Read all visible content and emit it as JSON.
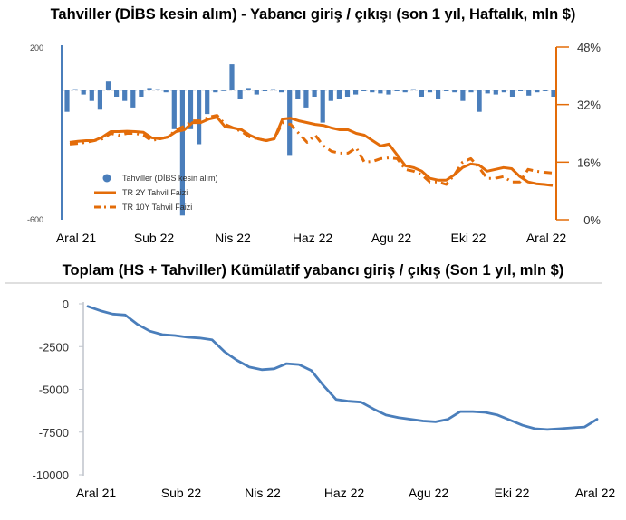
{
  "charts": {
    "top": {
      "title": "Tahviller (DİBS kesin alım) - Yabancı giriş / çıkışı (son 1 yıl, Haftalık, mln $)"
    },
    "bottom": {
      "title": "Toplam (HS + Tahviller) Kümülatif yabancı giriş / çıkış (Son 1 yıl, mln $)"
    }
  },
  "colors": {
    "blue": "#4a7ebb",
    "orange": "#e36c09",
    "axis_gray": "#7f7f7f",
    "grid": "#d9d9d9"
  },
  "chart_data": [
    {
      "type": "bar",
      "title": "Tahviller (DİBS kesin alım) - Yabancı giriş / çıkışı (son 1 yıl, Haftalık, mln $)",
      "x_ticks": [
        "Aral 21",
        "Sub 22",
        "Nis 22",
        "Haz 22",
        "Agu 22",
        "Eki 22",
        "Aral 22"
      ],
      "left_axis": {
        "ylim": [
          -600,
          200
        ],
        "ticks": [
          "200",
          "-600"
        ]
      },
      "right_axis": {
        "ylim": [
          0,
          48
        ],
        "ticks": [
          "48%",
          "32%",
          "16%",
          "0%"
        ]
      },
      "legend": [
        "Tahviller (DİBS kesin alım)",
        "TR 2Y Tahvil Faizi",
        "TR 10Y Tahvil Faizi"
      ],
      "series": [
        {
          "name": "Tahviller (DİBS kesin alım)",
          "type": "bar",
          "axis": "left",
          "values": [
            -100,
            5,
            -20,
            -50,
            -90,
            40,
            -30,
            -50,
            -80,
            -30,
            10,
            5,
            -10,
            -180,
            -580,
            -180,
            -250,
            -110,
            -10,
            0,
            120,
            -40,
            10,
            -20,
            -5,
            5,
            -10,
            -300,
            -40,
            -80,
            -30,
            -150,
            -50,
            -40,
            -30,
            -20,
            -5,
            -10,
            -15,
            -20,
            -5,
            -10,
            5,
            -30,
            -10,
            -40,
            -5,
            -10,
            -50,
            -10,
            -100,
            -15,
            -20,
            -10,
            -30,
            -5,
            -25,
            -10,
            -5,
            -30
          ]
        },
        {
          "name": "TR 2Y Tahvil Faizi",
          "type": "line",
          "axis": "right",
          "values": [
            21.5,
            21.8,
            22,
            22,
            23,
            24.5,
            24.5,
            24.6,
            24.5,
            24.3,
            22.8,
            22.5,
            23,
            24.5,
            25,
            27,
            27,
            28,
            28.5,
            25.8,
            25.5,
            25,
            23.5,
            22.5,
            22,
            22.5,
            28,
            28.2,
            27.5,
            27,
            26.5,
            26.2,
            25.5,
            25,
            25,
            24,
            23.5,
            22,
            20.5,
            21,
            18,
            15,
            14.5,
            13.5,
            11.5,
            11,
            11,
            12.5,
            14.5,
            15.5,
            15.2,
            13.5,
            14,
            14.5,
            14.2,
            12,
            10.5,
            10,
            9.8,
            9.5
          ]
        },
        {
          "name": "TR 10Y Tahvil Faizi",
          "type": "line",
          "axis": "right",
          "values": [
            21,
            21.2,
            21.5,
            22,
            22.5,
            24,
            23.5,
            24,
            24,
            23.5,
            22,
            22.5,
            23,
            25,
            26,
            27.5,
            27.5,
            28.5,
            29,
            26.5,
            25.5,
            24.5,
            23,
            22.5,
            22,
            22.5,
            27,
            26.5,
            24,
            21.5,
            23.5,
            20.5,
            19,
            18.5,
            18.5,
            20,
            16,
            16.2,
            17,
            17.2,
            17,
            14,
            13.5,
            12.5,
            10.5,
            10.5,
            9.8,
            12.5,
            16,
            17,
            14.5,
            11.5,
            11.5,
            12,
            10.5,
            10.5,
            14,
            13.5,
            13.2,
            13
          ]
        }
      ]
    },
    {
      "type": "line",
      "title": "Toplam (HS + Tahviller) Kümülatif yabancı giriş / çıkış (Son 1 yıl, mln $)",
      "x_ticks": [
        "Aral 21",
        "Sub 22",
        "Nis 22",
        "Haz 22",
        "Agu 22",
        "Eki 22",
        "Aral 22"
      ],
      "y_axis": {
        "ylim": [
          -10000,
          0
        ],
        "ticks": [
          "0",
          "-2500",
          "-5000",
          "-7500",
          "-10000"
        ]
      },
      "series": [
        {
          "name": "",
          "values": [
            -150,
            -400,
            -600,
            -650,
            -1200,
            -1600,
            -1800,
            -1850,
            -1950,
            -2000,
            -2100,
            -2800,
            -3300,
            -3700,
            -3850,
            -3800,
            -3500,
            -3550,
            -3900,
            -4800,
            -5600,
            -5700,
            -5750,
            -6150,
            -6500,
            -6650,
            -6750,
            -6850,
            -6900,
            -6750,
            -6300,
            -6300,
            -6350,
            -6500,
            -6800,
            -7100,
            -7300,
            -7350,
            -7300,
            -7250,
            -7200,
            -6750
          ]
        }
      ]
    }
  ]
}
